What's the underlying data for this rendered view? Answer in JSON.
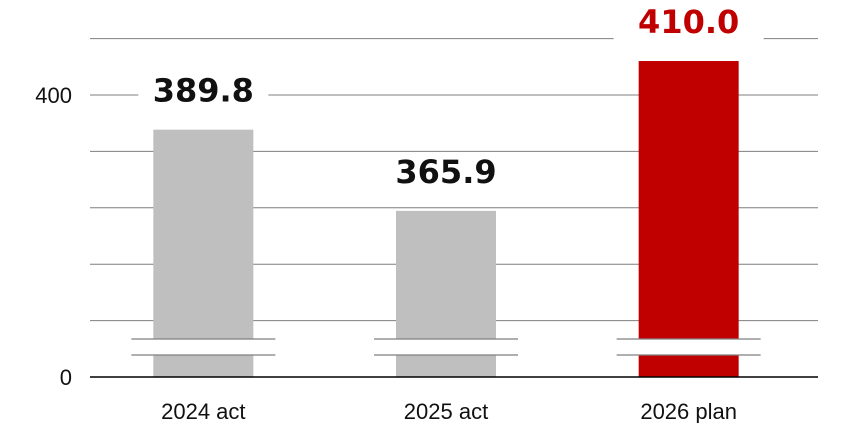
{
  "chart_data": {
    "type": "bar",
    "categories": [
      "2024 act",
      "2025 act",
      "2026 plan"
    ],
    "values": [
      389.8,
      365.9,
      410.0
    ],
    "data_labels": [
      "389.8",
      "365.9",
      "410.0"
    ],
    "highlight_index": 2,
    "colors": {
      "bar": "#bfbfbf",
      "highlight": "#c00000",
      "label": "#111111",
      "highlight_label": "#c00000",
      "grid": "#7f7f7f",
      "axis": "#000000"
    },
    "yticks": [
      {
        "value": 0,
        "label": "0"
      },
      {
        "value": 400,
        "label": "400"
      }
    ],
    "axis_break": true,
    "grid": true,
    "title": "",
    "xlabel": "",
    "ylabel": ""
  }
}
